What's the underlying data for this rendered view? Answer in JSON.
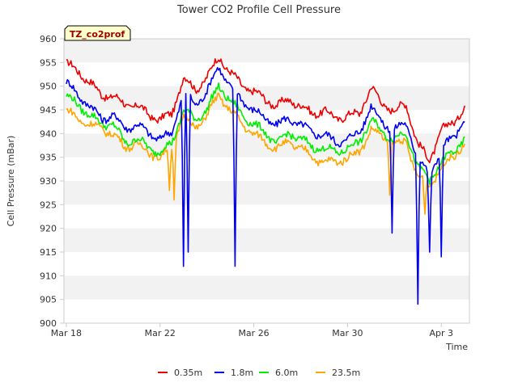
{
  "chart_data": {
    "type": "line",
    "title": "Tower CO2 Profile Cell Pressure",
    "xlabel": "Time",
    "ylabel": "Cell Pressure (mBar)",
    "tag": "TZ_co2prof",
    "ylim": [
      900,
      960
    ],
    "y_ticks": [
      900,
      905,
      910,
      915,
      920,
      925,
      930,
      935,
      940,
      945,
      950,
      955,
      960
    ],
    "x_ticks": [
      {
        "label": "Mar 18",
        "day": 0
      },
      {
        "label": "Mar 22",
        "day": 4
      },
      {
        "label": "Mar 26",
        "day": 8
      },
      {
        "label": "Mar 30",
        "day": 12
      },
      {
        "label": "Apr 3",
        "day": 16
      }
    ],
    "xlim_days": [
      -0.1,
      17.2
    ],
    "grid": "alternating horizontal bands",
    "legend_position": "bottom",
    "x": [
      0.0,
      0.5,
      1.0,
      1.5,
      2.0,
      2.5,
      3.0,
      3.5,
      4.0,
      4.5,
      5.0,
      5.5,
      6.0,
      6.5,
      7.0,
      7.5,
      8.0,
      8.5,
      9.0,
      9.5,
      10.0,
      10.5,
      11.0,
      11.5,
      12.0,
      12.5,
      13.0,
      13.5,
      14.0,
      14.5,
      15.0,
      15.5,
      16.0,
      16.5,
      17.0
    ],
    "series": [
      {
        "name": "0.35m",
        "color": "#ee0000",
        "values": [
          955,
          953,
          951,
          948,
          948,
          946,
          946,
          944,
          943,
          944,
          952,
          949,
          952,
          956,
          953,
          950,
          949,
          947,
          946,
          947,
          946,
          944,
          945,
          943,
          944,
          944,
          950,
          946,
          945,
          946,
          938,
          934,
          941,
          942,
          946
        ]
      },
      {
        "name": "1.8m",
        "color": "#0000ee",
        "values": [
          951,
          948,
          946,
          943,
          944,
          941,
          942,
          940,
          939,
          940,
          949,
          946,
          949,
          954,
          950,
          947,
          945,
          943,
          942,
          943,
          942,
          940,
          940,
          938,
          939,
          940,
          946,
          942,
          941,
          942,
          935,
          931,
          937,
          939,
          943
        ]
      },
      {
        "name": "6.0m",
        "color": "#00ee00",
        "values": [
          948,
          946,
          944,
          942,
          942,
          938,
          939,
          937,
          936,
          938,
          945,
          943,
          945,
          950,
          947,
          944,
          942,
          940,
          938,
          940,
          939,
          937,
          937,
          936,
          937,
          938,
          943,
          940,
          939,
          940,
          933,
          930,
          934,
          936,
          939
        ]
      },
      {
        "name": "23.5m",
        "color": "#ffa500",
        "values": [
          945,
          943,
          942,
          941,
          940,
          937,
          938,
          936,
          935,
          937,
          944,
          941,
          944,
          948,
          945,
          942,
          940,
          938,
          937,
          938,
          937,
          935,
          934,
          934,
          935,
          936,
          941,
          939,
          938,
          938,
          931,
          929,
          933,
          935,
          938
        ]
      }
    ],
    "dips": [
      {
        "series": "1.8m",
        "x": 5.0,
        "value": 912
      },
      {
        "series": "1.8m",
        "x": 5.2,
        "value": 915
      },
      {
        "series": "1.8m",
        "x": 7.2,
        "value": 912
      },
      {
        "series": "1.8m",
        "x": 13.9,
        "value": 919
      },
      {
        "series": "1.8m",
        "x": 15.0,
        "value": 904
      },
      {
        "series": "1.8m",
        "x": 15.5,
        "value": 915
      },
      {
        "series": "1.8m",
        "x": 16.0,
        "value": 914
      },
      {
        "series": "23.5m",
        "x": 4.4,
        "value": 928
      },
      {
        "series": "23.5m",
        "x": 4.6,
        "value": 926
      },
      {
        "series": "23.5m",
        "x": 13.8,
        "value": 927
      },
      {
        "series": "23.5m",
        "x": 15.3,
        "value": 923
      }
    ]
  }
}
